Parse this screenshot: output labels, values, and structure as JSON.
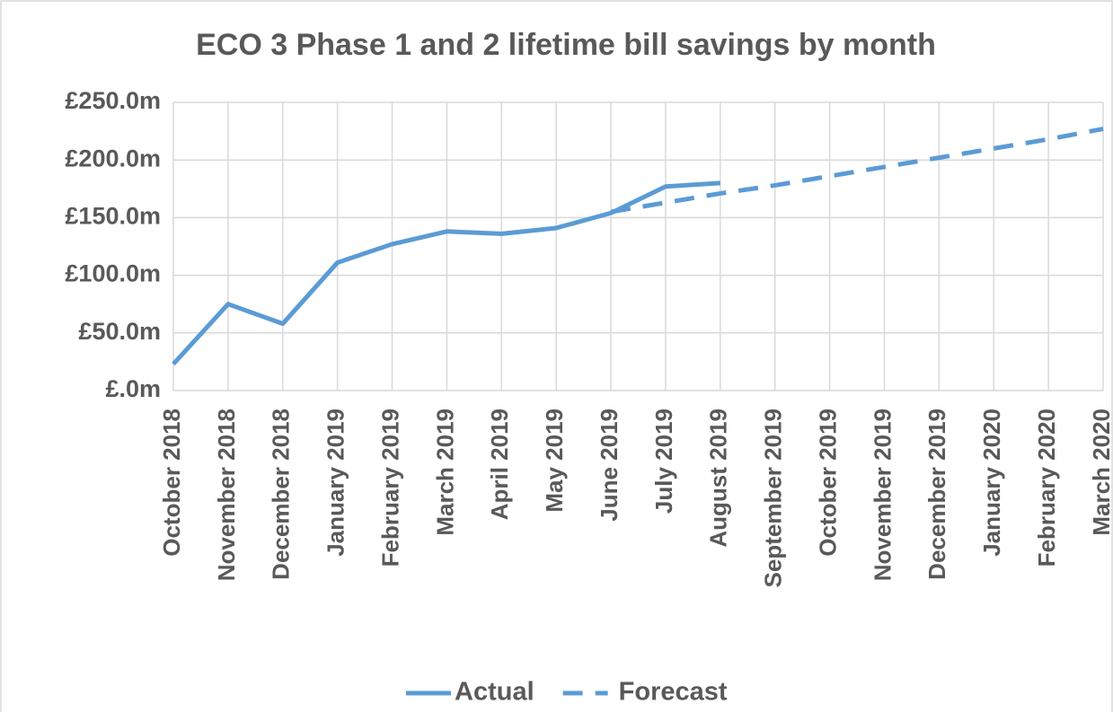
{
  "chart_data": {
    "type": "line",
    "title": "ECO 3 Phase 1 and 2 lifetime bill savings by month",
    "categories": [
      "October 2018",
      "November 2018",
      "December 2018",
      "January 2019",
      "February 2019",
      "March 2019",
      "April 2019",
      "May 2019",
      "June 2019",
      "July 2019",
      "August 2019",
      "September 2019",
      "October 2019",
      "November 2019",
      "December 2019",
      "January 2020",
      "February 2020",
      "March 2020"
    ],
    "series": [
      {
        "name": "Actual",
        "color": "#5b9bd5",
        "dashed": false,
        "values": [
          23,
          75,
          58,
          111,
          127,
          138,
          136,
          141,
          154,
          177,
          180,
          null,
          null,
          null,
          null,
          null,
          null,
          null
        ]
      },
      {
        "name": "Forecast",
        "color": "#5b9bd5",
        "dashed": true,
        "values": [
          null,
          null,
          null,
          null,
          null,
          null,
          null,
          null,
          155,
          163,
          171,
          178,
          186,
          194,
          202,
          210,
          218,
          227
        ]
      }
    ],
    "ylim": [
      0,
      250
    ],
    "yticks": [
      {
        "value": 0,
        "label": "£.0m"
      },
      {
        "value": 50,
        "label": "£50.0m"
      },
      {
        "value": 100,
        "label": "£100.0m"
      },
      {
        "value": 150,
        "label": "£150.0m"
      },
      {
        "value": 200,
        "label": "£200.0m"
      },
      {
        "value": 250,
        "label": "£250.0m"
      }
    ],
    "grid": true,
    "legend": "bottom"
  }
}
